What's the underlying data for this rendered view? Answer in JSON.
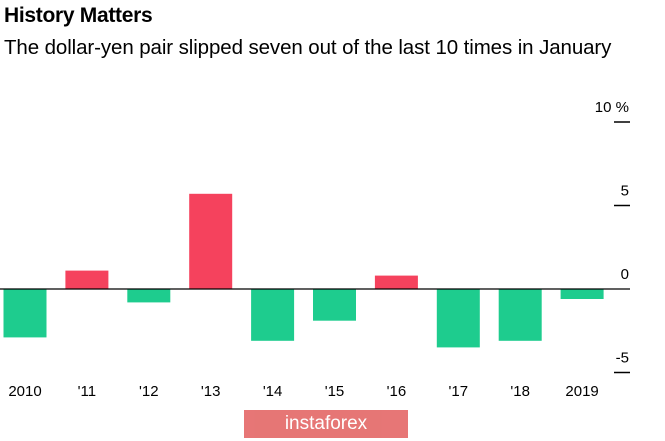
{
  "title": "History Matters",
  "subtitle": "The dollar-yen pair slipped seven out of the last 10 times in January",
  "watermark": "instaforex",
  "colors": {
    "positive": "#f5425d",
    "negative": "#1ecc8e",
    "axis": "#000000",
    "text": "#000000"
  },
  "chart_data": {
    "type": "bar",
    "categories": [
      "2010",
      "'11",
      "'12",
      "'13",
      "'14",
      "'15",
      "'16",
      "'17",
      "'18",
      "2019"
    ],
    "values": [
      -2.9,
      1.1,
      -0.8,
      5.7,
      -3.1,
      -1.9,
      0.8,
      -3.5,
      -3.1,
      -0.6
    ],
    "ylim": [
      -5,
      10
    ],
    "yticks": [
      10,
      5,
      0,
      -5
    ],
    "ytick_labels": [
      "10 %",
      "5",
      "0",
      "-5"
    ],
    "zero_line": true
  }
}
